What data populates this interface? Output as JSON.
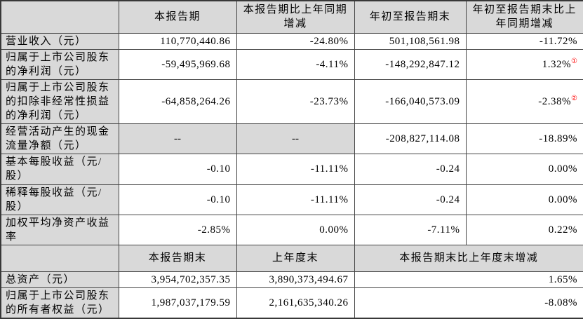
{
  "colors": {
    "header_bg": "#d9d9d9",
    "grid_border": "#454545",
    "superscript_red": "#ff0000",
    "data_cell_bg": "#ffffff"
  },
  "section1": {
    "headers": {
      "corner": "",
      "col1": "本报告期",
      "col2": "本报告期比上年同期增减",
      "col3": "年初至报告期末",
      "col4": "年初至报告期末比上年同期增减"
    },
    "rows": [
      {
        "label": "营业收入（元）",
        "c1": "110,770,440.86",
        "c2": "-24.80%",
        "c3": "501,108,561.98",
        "c4": "-11.72%"
      },
      {
        "label": "归属于上市公司股东的净利润（元）",
        "c1": "-59,495,969.68",
        "c2": "-4.11%",
        "c3": "-148,292,847.12",
        "c4": "1.32%",
        "c4_sup": "①"
      },
      {
        "label": "归属于上市公司股东的扣除非经常性损益的净利润（元）",
        "c1": "-64,858,264.26",
        "c2": "-23.73%",
        "c3": "-166,040,573.09",
        "c4": "-2.38%",
        "c4_sup": "②"
      },
      {
        "label": "经营活动产生的现金流量净额（元）",
        "c1": "--",
        "c2": "--",
        "c3": "-208,827,114.08",
        "c4": "-18.89%"
      },
      {
        "label": "基本每股收益（元/股）",
        "c1": "-0.10",
        "c2": "-11.11%",
        "c3": "-0.24",
        "c4": "0.00%"
      },
      {
        "label": "稀释每股收益（元/股）",
        "c1": "-0.10",
        "c2": "-11.11%",
        "c3": "-0.24",
        "c4": "0.00%"
      },
      {
        "label": "加权平均净资产收益率",
        "c1": "-2.85%",
        "c2": "0.00%",
        "c3": "-7.11%",
        "c4": "0.22%"
      }
    ]
  },
  "section2": {
    "headers": {
      "corner": "",
      "col1": "本报告期末",
      "col2": "上年度末",
      "col3": "本报告期末比上年度末增减"
    },
    "rows": [
      {
        "label": "总资产（元）",
        "c1": "3,954,702,357.35",
        "c2": "3,890,373,494.67",
        "c3": "1.65%"
      },
      {
        "label": "归属于上市公司股东的所有者权益（元）",
        "c1": "1,987,037,179.59",
        "c2": "2,161,635,340.26",
        "c3": "-8.08%"
      }
    ]
  }
}
